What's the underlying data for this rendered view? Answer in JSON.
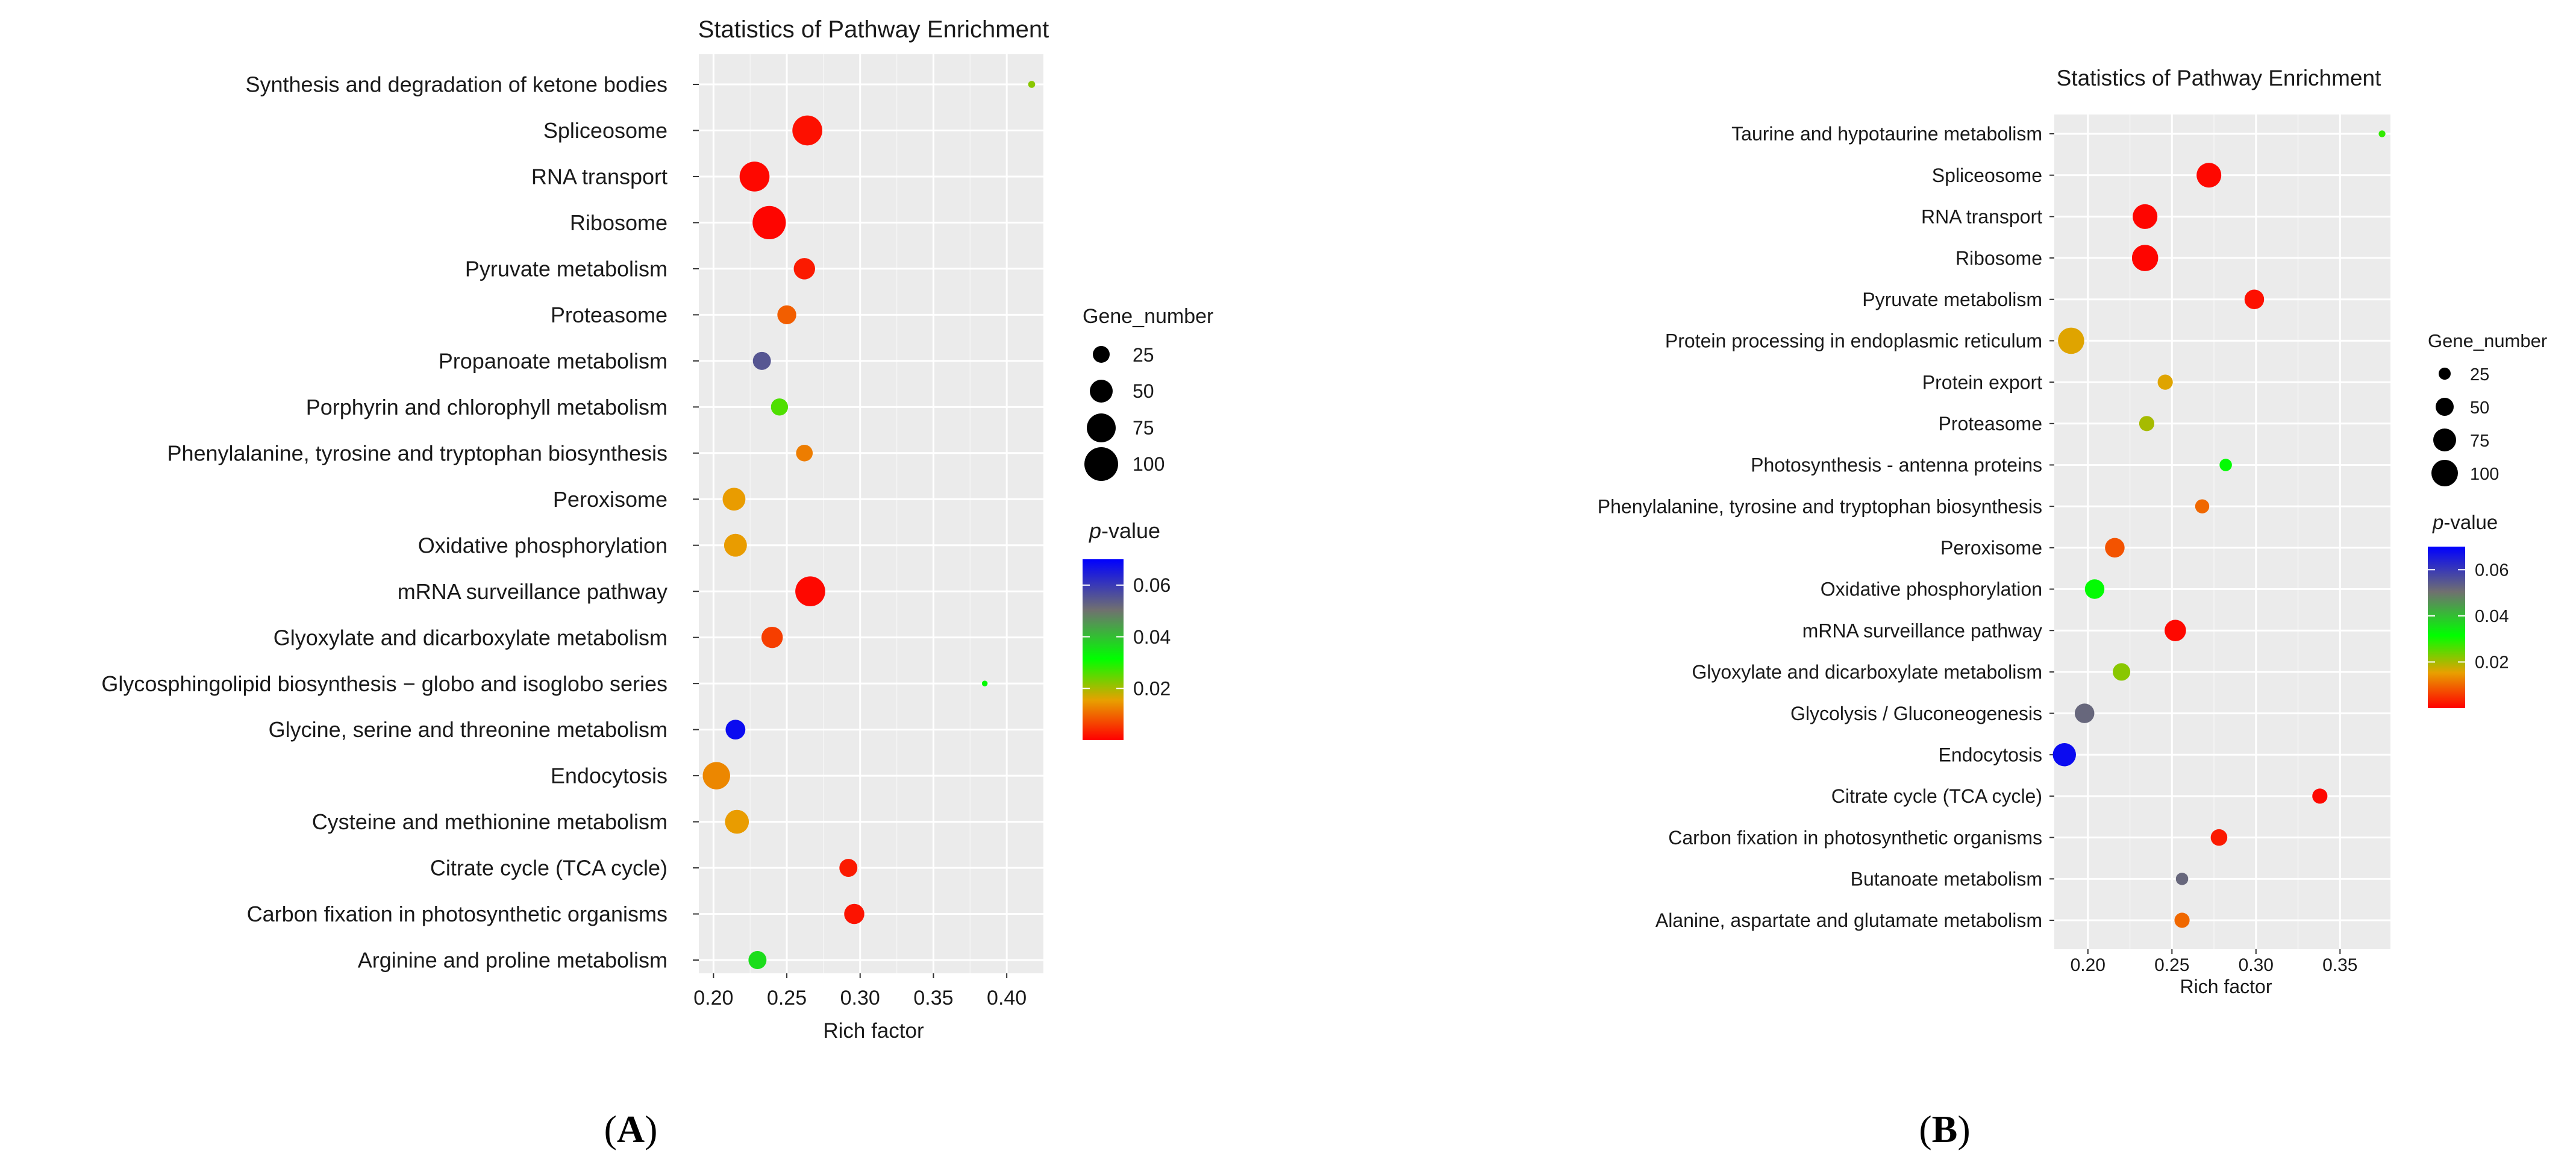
{
  "chart_data": [
    {
      "type": "scatter",
      "panel_label": "(A)",
      "panel_letter": "A",
      "title": "Statistics of Pathway Enrichment",
      "xlabel": "Rich factor",
      "ylabel": "",
      "xlim": [
        0.19,
        0.425
      ],
      "x_ticks": [
        0.2,
        0.25,
        0.3,
        0.35,
        0.4
      ],
      "x_tick_labels": [
        "0.20",
        "0.25",
        "0.30",
        "0.35",
        "0.40"
      ],
      "grid": true,
      "categories": [
        "Synthesis and degradation of ketone bodies",
        "Spliceosome",
        "RNA transport",
        "Ribosome",
        "Pyruvate metabolism",
        "Proteasome",
        "Propanoate metabolism",
        "Porphyrin and chlorophyll metabolism",
        "Phenylalanine, tyrosine and tryptophan biosynthesis",
        "Peroxisome",
        "Oxidative phosphorylation",
        "mRNA surveillance pathway",
        "Glyoxylate and dicarboxylate metabolism",
        "Glycosphingolipid biosynthesis − globo and isoglobo series",
        "Glycine, serine and threonine metabolism",
        "Endocytosis",
        "Cysteine and methionine metabolism",
        "Citrate cycle (TCA cycle)",
        "Carbon fixation in photosynthetic organisms",
        "Arginine and proline metabolism"
      ],
      "rich_factor": [
        0.417,
        0.264,
        0.228,
        0.238,
        0.262,
        0.25,
        0.233,
        0.245,
        0.262,
        0.214,
        0.215,
        0.266,
        0.24,
        0.385,
        0.215,
        0.202,
        0.216,
        0.292,
        0.296,
        0.23
      ],
      "gene_number": [
        3,
        55,
        55,
        68,
        28,
        22,
        20,
        18,
        17,
        32,
        32,
        55,
        28,
        2,
        24,
        46,
        35,
        20,
        25,
        20
      ],
      "p_value": [
        0.022,
        0.0015,
        0.0008,
        0.0005,
        0.0025,
        0.009,
        0.055,
        0.026,
        0.012,
        0.015,
        0.015,
        0.0008,
        0.006,
        0.032,
        0.068,
        0.013,
        0.015,
        0.0025,
        0.0018,
        0.036
      ],
      "size_legend": {
        "title": "Gene_number",
        "values": [
          25,
          50,
          75,
          100
        ],
        "labels": [
          "25",
          "50",
          "75",
          "100"
        ]
      },
      "color_legend": {
        "title_italic": "p",
        "title_rest": "-value",
        "range": [
          0,
          0.07
        ],
        "ticks": [
          0.02,
          0.04,
          0.06
        ],
        "tick_labels": [
          "0.02",
          "0.04",
          "0.06"
        ]
      },
      "legend_position": "right"
    },
    {
      "type": "scatter",
      "panel_label": "(B)",
      "panel_letter": "B",
      "title": "Statistics of Pathway Enrichment",
      "xlabel": "Rich factor",
      "ylabel": "",
      "xlim": [
        0.18,
        0.38
      ],
      "x_ticks": [
        0.2,
        0.25,
        0.3,
        0.35
      ],
      "x_tick_labels": [
        "0.20",
        "0.25",
        "0.30",
        "0.35"
      ],
      "grid": true,
      "categories": [
        "Taurine and hypotaurine metabolism",
        "Spliceosome",
        "RNA transport",
        "Ribosome",
        "Pyruvate metabolism",
        "Protein processing in endoplasmic reticulum",
        "Protein export",
        "Proteasome",
        "Photosynthesis -  antenna proteins",
        "Phenylalanine, tyrosine and tryptophan biosynthesis",
        "Peroxisome",
        "Oxidative phosphorylation",
        "mRNA surveillance pathway",
        "Glyoxylate and dicarboxylate metabolism",
        "Glycolysis / Gluconeogenesis",
        "Endocytosis",
        "Citrate cycle (TCA cycle)",
        "Carbon fixation in photosynthetic organisms",
        "Butanoate metabolism",
        "Alanine, aspartate and glutamate metabolism"
      ],
      "rich_factor": [
        0.375,
        0.272,
        0.234,
        0.234,
        0.299,
        0.19,
        0.246,
        0.235,
        0.282,
        0.268,
        0.216,
        0.204,
        0.252,
        0.22,
        0.198,
        0.186,
        0.338,
        0.278,
        0.256,
        0.256
      ],
      "gene_number": [
        3,
        40,
        40,
        45,
        25,
        45,
        15,
        15,
        10,
        13,
        25,
        25,
        30,
        20,
        25,
        35,
        15,
        18,
        10,
        15
      ],
      "p_value": [
        0.028,
        0.0008,
        0.0005,
        0.0005,
        0.0015,
        0.016,
        0.016,
        0.02,
        0.032,
        0.01,
        0.008,
        0.032,
        0.0008,
        0.022,
        0.052,
        0.068,
        0.0008,
        0.0025,
        0.052,
        0.01
      ],
      "size_legend": {
        "title": "Gene_number",
        "values": [
          25,
          50,
          75,
          100
        ],
        "labels": [
          "25",
          "50",
          "75",
          "100"
        ]
      },
      "color_legend": {
        "title_italic": "p",
        "title_rest": "-value",
        "range": [
          0,
          0.07
        ],
        "ticks": [
          0.02,
          0.04,
          0.06
        ],
        "tick_labels": [
          "0.02",
          "0.04",
          "0.06"
        ]
      },
      "legend_position": "right"
    }
  ],
  "colors": {
    "panel_background": "#ebebeb",
    "grid": "#ffffff",
    "gradient_stops": [
      "#ff0000",
      "#e8a000",
      "#00ff00",
      "#707070",
      "#0000ff"
    ]
  }
}
